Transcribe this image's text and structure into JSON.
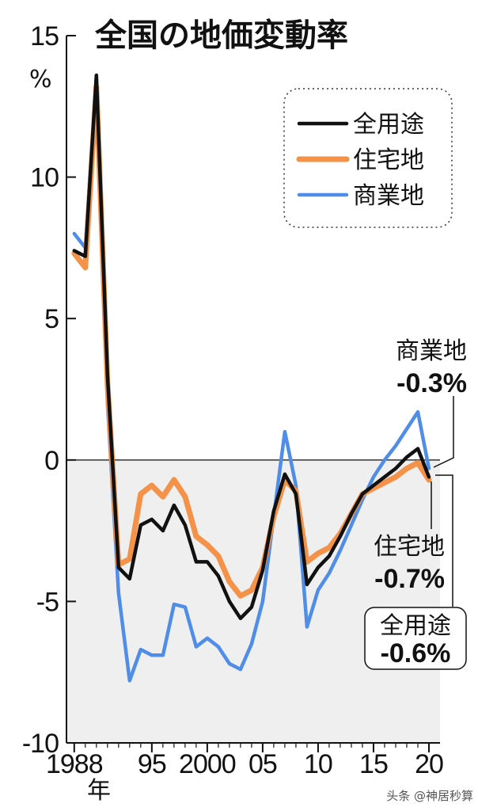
{
  "chart_data": {
    "type": "line",
    "title": "全国の地価変動率",
    "y_unit": "%",
    "x_unit": "年",
    "ylim": [
      -10,
      15
    ],
    "xlim": [
      1987.3,
      2021
    ],
    "y_ticks": [
      {
        "value": 15,
        "label": "15"
      },
      {
        "value": 10,
        "label": "10"
      },
      {
        "value": 5,
        "label": "5"
      },
      {
        "value": 0,
        "label": "0"
      },
      {
        "value": -5,
        "label": "-5"
      },
      {
        "value": -10,
        "label": "-10"
      }
    ],
    "x_ticks": [
      {
        "value": 1988,
        "label": "1988"
      },
      {
        "value": 1995,
        "label": "95"
      },
      {
        "value": 2000,
        "label": "2000"
      },
      {
        "value": 2005,
        "label": "05"
      },
      {
        "value": 2010,
        "label": "10"
      },
      {
        "value": 2015,
        "label": "15"
      },
      {
        "value": 2020,
        "label": "20"
      }
    ],
    "grid": false,
    "negative_region_shaded": true,
    "legend_position": "top-right",
    "x": [
      1988,
      1989,
      1990,
      1991,
      1992,
      1993,
      1994,
      1995,
      1996,
      1997,
      1998,
      1999,
      2000,
      2001,
      2002,
      2003,
      2004,
      2005,
      2006,
      2007,
      2008,
      2009,
      2010,
      2011,
      2012,
      2013,
      2014,
      2015,
      2016,
      2017,
      2018,
      2019,
      2020
    ],
    "series": [
      {
        "name": "全用途",
        "color": "#111111",
        "values": [
          7.4,
          7.2,
          13.6,
          3.0,
          -3.8,
          -4.2,
          -2.3,
          -2.1,
          -2.5,
          -1.6,
          -2.3,
          -3.6,
          -3.6,
          -4.1,
          -5.0,
          -5.6,
          -5.2,
          -3.9,
          -1.8,
          -0.5,
          -1.2,
          -4.4,
          -3.8,
          -3.4,
          -2.7,
          -1.9,
          -1.2,
          -0.9,
          -0.6,
          -0.3,
          0.1,
          0.4,
          -0.6
        ]
      },
      {
        "name": "住宅地",
        "color": "#f4924a",
        "values": [
          7.3,
          6.8,
          13.2,
          2.7,
          -3.7,
          -3.5,
          -1.2,
          -0.9,
          -1.3,
          -0.7,
          -1.3,
          -2.7,
          -3.0,
          -3.4,
          -4.3,
          -4.8,
          -4.6,
          -3.8,
          -2.0,
          -0.7,
          -1.1,
          -3.6,
          -3.3,
          -3.1,
          -2.6,
          -1.9,
          -1.2,
          -1.0,
          -0.8,
          -0.6,
          -0.3,
          -0.1,
          -0.7
        ]
      },
      {
        "name": "商業地",
        "color": "#4f8de8",
        "values": [
          8.0,
          7.5,
          13.5,
          2.0,
          -4.7,
          -7.8,
          -6.7,
          -6.9,
          -6.9,
          -5.1,
          -5.2,
          -6.6,
          -6.3,
          -6.6,
          -7.2,
          -7.4,
          -6.5,
          -5.0,
          -2.0,
          1.0,
          -0.9,
          -5.9,
          -4.6,
          -4.0,
          -3.2,
          -2.3,
          -1.4,
          -0.6,
          0.0,
          0.5,
          1.1,
          1.7,
          -0.3
        ]
      }
    ],
    "annotations": [
      {
        "series": "商業地",
        "name": "商業地",
        "value": "-0.3%"
      },
      {
        "series": "住宅地",
        "name": "住宅地",
        "value": "-0.7%"
      },
      {
        "series": "全用途",
        "name": "全用途",
        "value": "-0.6%"
      }
    ]
  },
  "watermark": "头条 @神居秒算"
}
